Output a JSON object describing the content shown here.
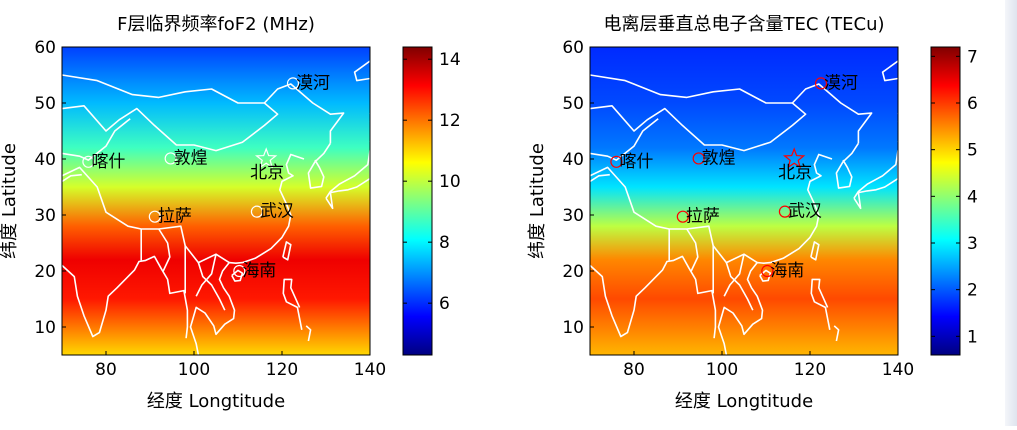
{
  "chart_data": [
    {
      "type": "heatmap",
      "title": "F层临界频率foF2 (MHz)",
      "xlabel": "经度 Longtitude",
      "ylabel": "纬度 Latitude",
      "xlim": [
        70,
        140
      ],
      "ylim": [
        5,
        60
      ],
      "xticks": [
        "80",
        "100",
        "120",
        "140"
      ],
      "yticks": [
        "10",
        "20",
        "30",
        "40",
        "50",
        "60"
      ],
      "colorbar": {
        "min": 4.3,
        "max": 14.4,
        "ticks": [
          "6",
          "8",
          "10",
          "12",
          "14"
        ],
        "tick_values": [
          6,
          8,
          10,
          12,
          14
        ]
      },
      "field_profile": [
        {
          "lat": 5,
          "value": 11.0
        },
        {
          "lat": 15,
          "value": 12.9
        },
        {
          "lat": 22,
          "value": 13.3
        },
        {
          "lat": 28,
          "value": 12.2
        },
        {
          "lat": 35,
          "value": 10.2
        },
        {
          "lat": 42,
          "value": 8.7
        },
        {
          "lat": 50,
          "value": 7.4
        },
        {
          "lat": 60,
          "value": 6.2
        }
      ],
      "colormap": "jet",
      "stations": [
        {
          "name": "喀什",
          "lon": 76,
          "lat": 39.5
        },
        {
          "name": "敦煌",
          "lon": 94.7,
          "lat": 40.1
        },
        {
          "name": "北京",
          "lon": 116.4,
          "lat": 40.0
        },
        {
          "name": "拉萨",
          "lon": 91.1,
          "lat": 29.7
        },
        {
          "name": "武汉",
          "lon": 114.3,
          "lat": 30.6
        },
        {
          "name": "海南",
          "lon": 110.3,
          "lat": 20.0
        },
        {
          "name": "漠河",
          "lon": 122.5,
          "lat": 53.5
        }
      ],
      "station_marker_color": "#ffffff",
      "star_station": "北京",
      "coastline_color": "#ffffff"
    },
    {
      "type": "heatmap",
      "title": "电离层垂直总电子含量TEC (TECu)",
      "xlabel": "经度 Longtitude",
      "ylabel": "纬度 Latitude",
      "xlim": [
        70,
        140
      ],
      "ylim": [
        5,
        60
      ],
      "xticks": [
        "80",
        "100",
        "120",
        "140"
      ],
      "yticks": [
        "10",
        "20",
        "30",
        "40",
        "50",
        "60"
      ],
      "colorbar": {
        "min": 0.6,
        "max": 7.2,
        "ticks": [
          "1",
          "2",
          "3",
          "4",
          "5",
          "6",
          "7"
        ],
        "tick_values": [
          1,
          2,
          3,
          4,
          5,
          6,
          7
        ]
      },
      "field_profile": [
        {
          "lat": 5,
          "value": 5.2
        },
        {
          "lat": 15,
          "value": 5.9
        },
        {
          "lat": 22,
          "value": 5.5
        },
        {
          "lat": 28,
          "value": 4.3
        },
        {
          "lat": 35,
          "value": 2.9
        },
        {
          "lat": 42,
          "value": 2.2
        },
        {
          "lat": 50,
          "value": 1.9
        },
        {
          "lat": 60,
          "value": 1.7
        }
      ],
      "colormap": "jet",
      "stations": [
        {
          "name": "喀什",
          "lon": 76,
          "lat": 39.5
        },
        {
          "name": "敦煌",
          "lon": 94.7,
          "lat": 40.1
        },
        {
          "name": "北京",
          "lon": 116.4,
          "lat": 40.0
        },
        {
          "name": "拉萨",
          "lon": 91.1,
          "lat": 29.7
        },
        {
          "name": "武汉",
          "lon": 114.3,
          "lat": 30.6
        },
        {
          "name": "海南",
          "lon": 110.3,
          "lat": 20.0
        },
        {
          "name": "漠河",
          "lon": 122.5,
          "lat": 53.5
        }
      ],
      "station_marker_color": "#ff0000",
      "star_station": "北京",
      "coastline_color": "#ffffff"
    }
  ]
}
